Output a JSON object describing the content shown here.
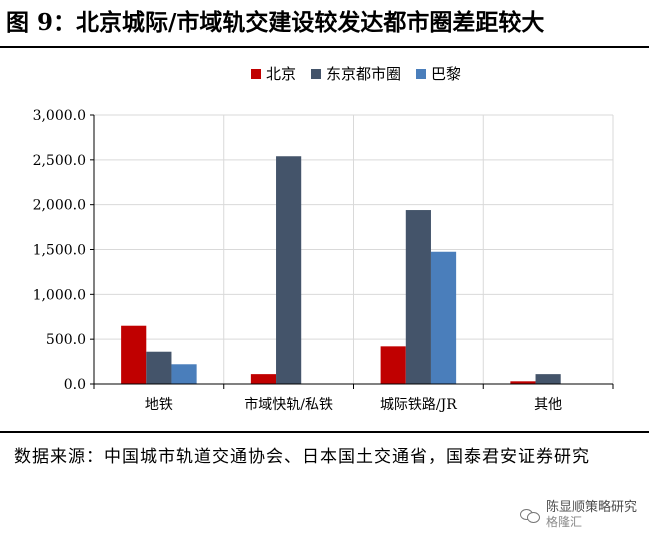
{
  "title": "图 9：北京城际/市域轨交建设较发达都市圈差距较大",
  "source": "数据来源：中国城市轨道交通协会、日本国土交通省，国泰君安证券研究",
  "watermark": {
    "line1": "陈显顺策略研究",
    "line2": "格隆汇"
  },
  "chart_data": {
    "type": "bar",
    "categories": [
      "地铁",
      "市域快轨/私铁",
      "城际铁路/JR",
      "其他"
    ],
    "series": [
      {
        "name": "北京",
        "color": "#c00000",
        "values": [
          650,
          110,
          420,
          30
        ]
      },
      {
        "name": "东京都市圈",
        "color": "#44546a",
        "values": [
          360,
          2540,
          1940,
          110
        ]
      },
      {
        "name": "巴黎",
        "color": "#4a7ebb",
        "values": [
          220,
          0,
          1475,
          0
        ]
      }
    ],
    "y_ticks": [
      "0.0",
      "500.0",
      "1,000.0",
      "1,500.0",
      "2,000.0",
      "2,500.0",
      "3,000.0"
    ],
    "ylim": [
      0,
      3000
    ],
    "grid": true,
    "legend_position": "top"
  }
}
